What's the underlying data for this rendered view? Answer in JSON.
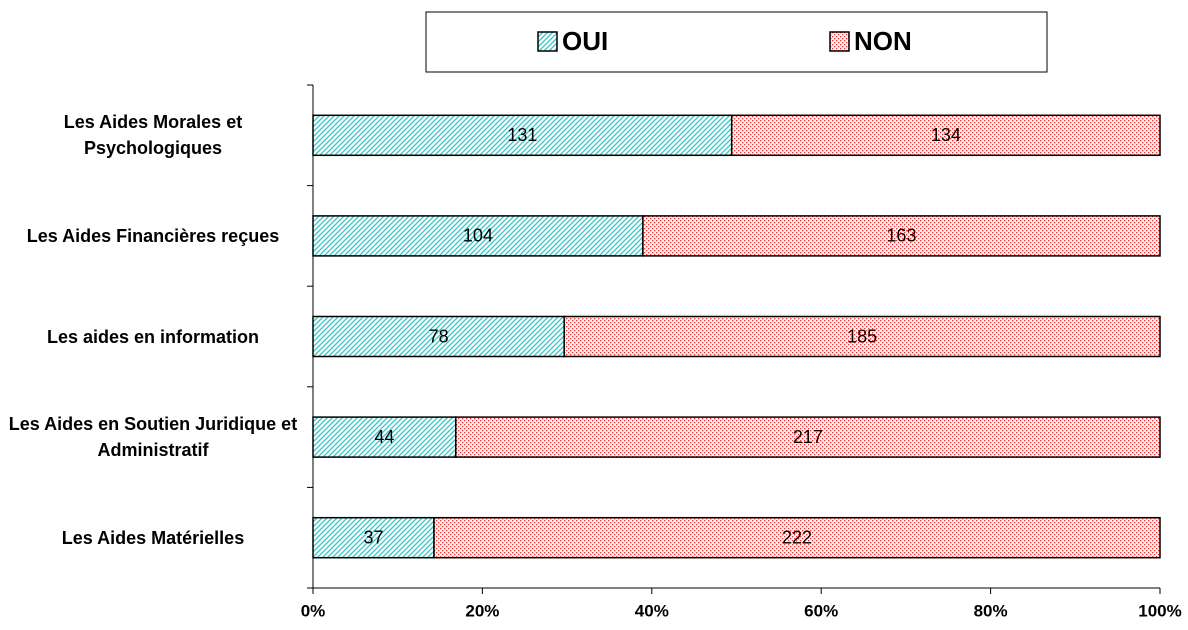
{
  "chart_data": {
    "type": "bar",
    "orientation": "horizontal",
    "stacking": "percent",
    "categories": [
      "Les Aides Morales et Psychologiques",
      "Les Aides Financières reçues",
      "Les aides en information",
      "Les Aides en Soutien Juridique et Administratif",
      "Les Aides Matérielles"
    ],
    "series": [
      {
        "name": "OUI",
        "color": "#33c6c6",
        "pattern": "diagonal",
        "values": [
          131,
          104,
          78,
          44,
          37
        ]
      },
      {
        "name": "NON",
        "color": "#e03a3a",
        "pattern": "dots",
        "values": [
          134,
          163,
          185,
          217,
          222
        ]
      }
    ],
    "xlim": [
      0,
      100
    ],
    "xticks": [
      {
        "value": 0,
        "label": "0%"
      },
      {
        "value": 20,
        "label": "20%"
      },
      {
        "value": 40,
        "label": "40%"
      },
      {
        "value": 60,
        "label": "60%"
      },
      {
        "value": 80,
        "label": "80%"
      },
      {
        "value": 100,
        "label": "100%"
      }
    ],
    "legend": "top"
  }
}
